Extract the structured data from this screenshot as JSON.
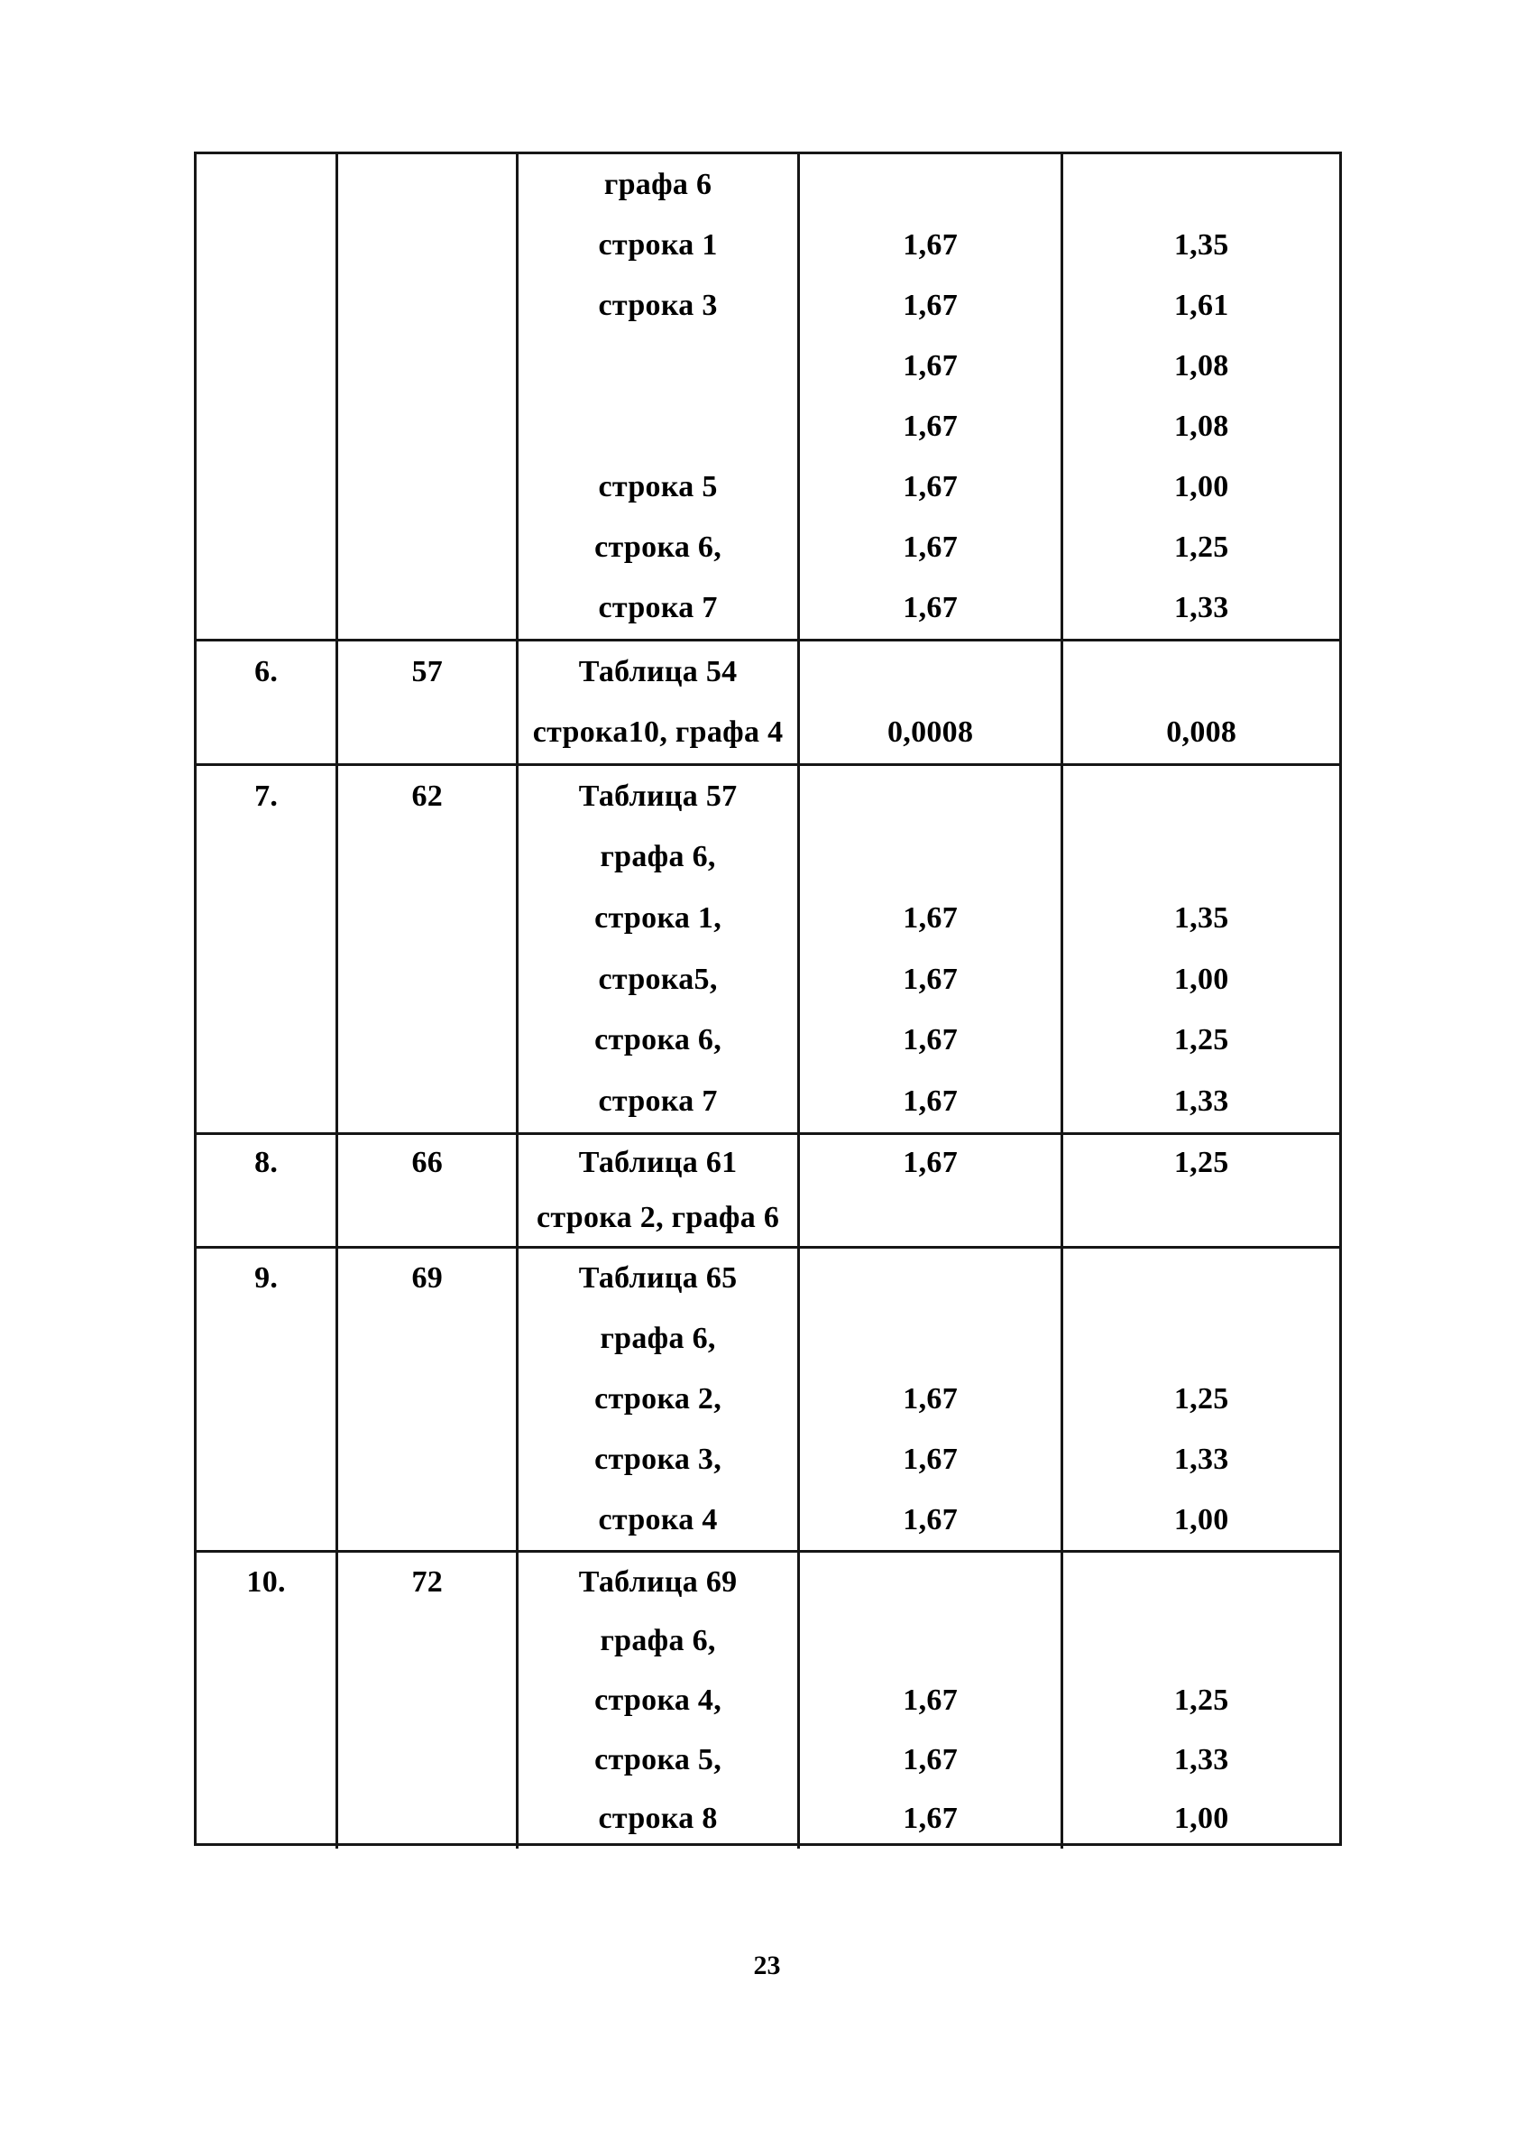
{
  "page": {
    "number": "23"
  },
  "table": {
    "blocks": [
      {
        "num": "",
        "page_ref": "",
        "lines": [
          {
            "ref": "графа 6",
            "v1": "",
            "v2": ""
          },
          {
            "ref": "строка 1",
            "v1": "1,67",
            "v2": "1,35"
          },
          {
            "ref": "строка 3",
            "v1": "1,67",
            "v2": "1,61"
          },
          {
            "ref": "",
            "v1": "1,67",
            "v2": "1,08"
          },
          {
            "ref": "",
            "v1": "1,67",
            "v2": "1,08"
          },
          {
            "ref": "строка 5",
            "v1": "1,67",
            "v2": "1,00"
          },
          {
            "ref": "строка 6,",
            "v1": "1,67",
            "v2": "1,25"
          },
          {
            "ref": "строка 7",
            "v1": "1,67",
            "v2": "1,33"
          }
        ]
      },
      {
        "num": "6.",
        "page_ref": "57",
        "lines": [
          {
            "ref": "Таблица 54",
            "v1": "",
            "v2": ""
          },
          {
            "ref": "строка10, графа 4",
            "v1": "0,0008",
            "v2": "0,008"
          }
        ]
      },
      {
        "num": "7.",
        "page_ref": "62",
        "lines": [
          {
            "ref": "Таблица 57",
            "v1": "",
            "v2": ""
          },
          {
            "ref": "графа 6,",
            "v1": "",
            "v2": ""
          },
          {
            "ref": "строка 1,",
            "v1": "1,67",
            "v2": "1,35"
          },
          {
            "ref": "строка5,",
            "v1": "1,67",
            "v2": "1,00"
          },
          {
            "ref": "строка 6,",
            "v1": "1,67",
            "v2": "1,25"
          },
          {
            "ref": "строка 7",
            "v1": "1,67",
            "v2": "1,33"
          }
        ]
      },
      {
        "num": "8.",
        "page_ref": "66",
        "lines": [
          {
            "ref": "Таблица 61",
            "v1": "1,67",
            "v2": "1,25"
          },
          {
            "ref": "строка 2, графа 6",
            "v1": "",
            "v2": ""
          }
        ]
      },
      {
        "num": "9.",
        "page_ref": "69",
        "lines": [
          {
            "ref": "Таблица 65",
            "v1": "",
            "v2": ""
          },
          {
            "ref": "графа 6,",
            "v1": "",
            "v2": ""
          },
          {
            "ref": "строка 2,",
            "v1": "1,67",
            "v2": "1,25"
          },
          {
            "ref": "строка 3,",
            "v1": "1,67",
            "v2": "1,33"
          },
          {
            "ref": "строка 4",
            "v1": "1,67",
            "v2": "1,00"
          }
        ]
      },
      {
        "num": "10.",
        "page_ref": "72",
        "lines": [
          {
            "ref": "Таблица 69",
            "v1": "",
            "v2": ""
          },
          {
            "ref": "графа 6,",
            "v1": "",
            "v2": ""
          },
          {
            "ref": "строка 4,",
            "v1": "1,67",
            "v2": "1,25"
          },
          {
            "ref": "строка 5,",
            "v1": "1,67",
            "v2": "1,33"
          },
          {
            "ref": "строка 8",
            "v1": "1,67",
            "v2": "1,00"
          }
        ]
      }
    ]
  }
}
